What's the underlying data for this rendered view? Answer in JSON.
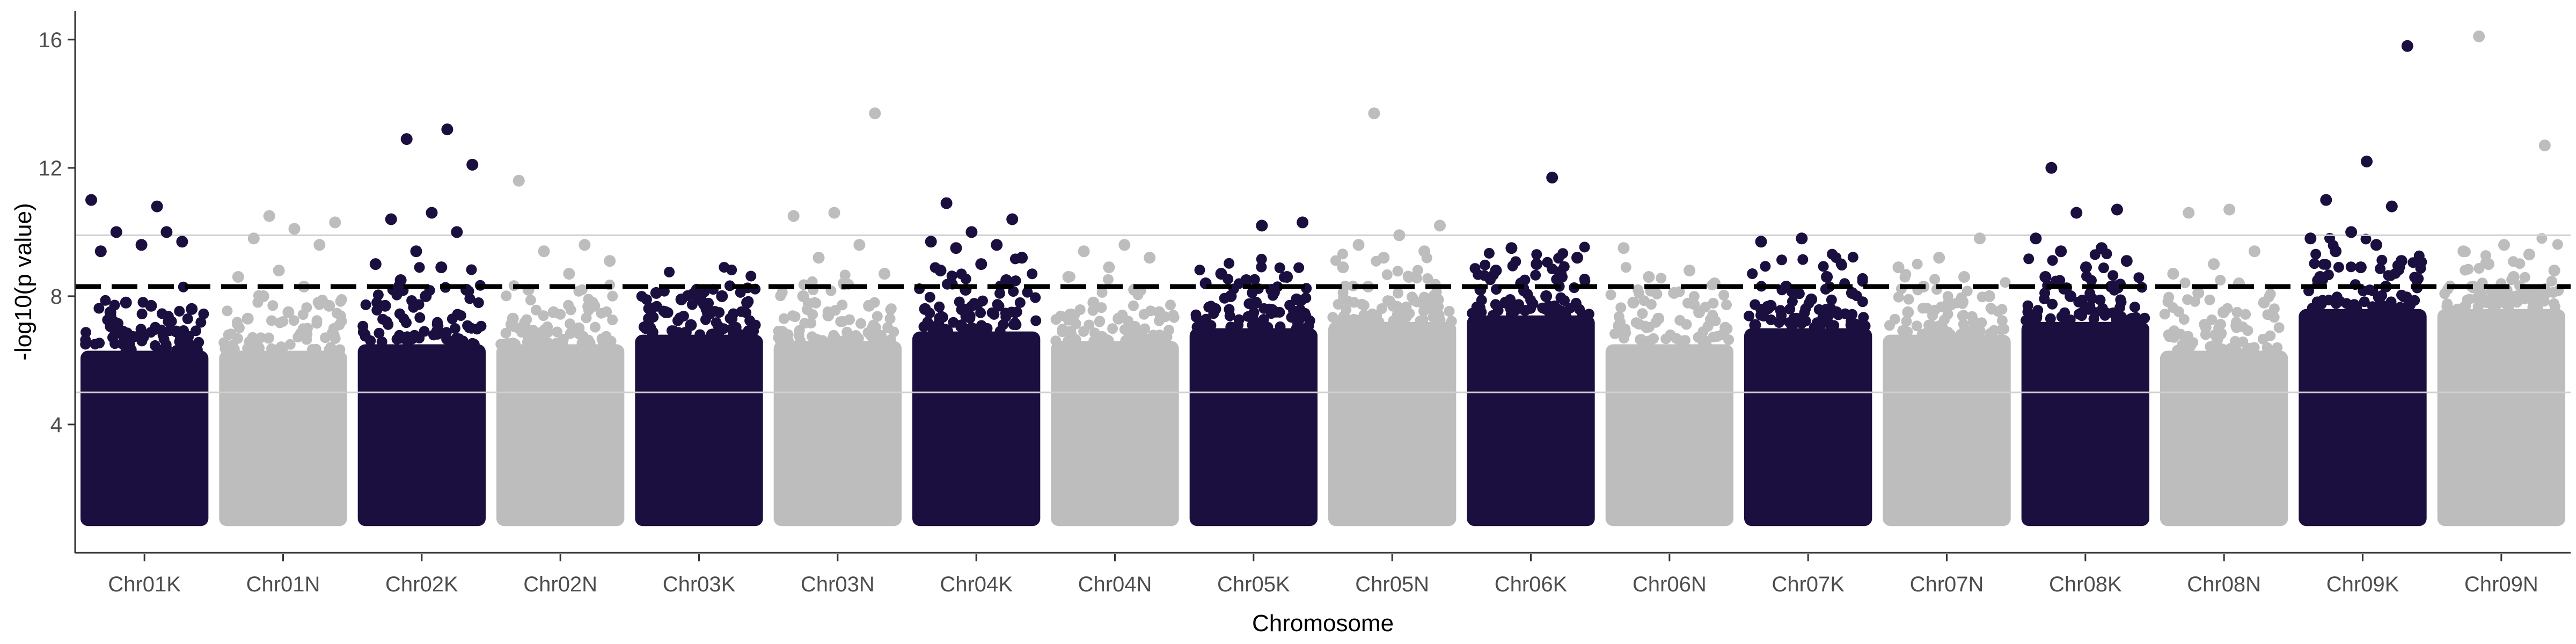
{
  "chart_data": {
    "type": "scatter",
    "subtype": "manhattan",
    "title": "",
    "xlabel": "Chromosome",
    "ylabel": "-log10(p value)",
    "ylim": [
      0,
      16.9
    ],
    "yticks": [
      4,
      8,
      12,
      16
    ],
    "grid": false,
    "legend": "none",
    "baseline_min": 1.0,
    "significance_line": {
      "y": 8.3,
      "style": "dashed",
      "color": "#000000"
    },
    "reference_lines": [
      {
        "y": 9.9,
        "color": "#d0d0d0"
      },
      {
        "y": 5.0,
        "color": "#d0d0d0"
      }
    ],
    "colors": {
      "dark": "#1b0f40",
      "light": "#bdbdbd"
    },
    "chromosomes": [
      {
        "name": "Chr01K",
        "color": "dark",
        "dense_top": 6.3,
        "points": [
          11.0,
          10.8,
          10.0,
          9.7,
          9.6,
          9.4,
          10.0,
          7.8,
          7.6,
          7.7,
          7.5,
          6.9
        ]
      },
      {
        "name": "Chr01N",
        "color": "light",
        "dense_top": 6.3,
        "points": [
          10.5,
          10.3,
          10.1,
          9.8,
          9.6,
          8.8,
          8.6,
          8.3,
          8.0,
          7.7,
          7.5,
          7.3
        ]
      },
      {
        "name": "Chr02K",
        "color": "dark",
        "dense_top": 6.5,
        "points": [
          13.2,
          12.9,
          12.1,
          10.6,
          10.4,
          10.0,
          9.4,
          9.0,
          8.9,
          8.5,
          8.2,
          8.0,
          7.7
        ]
      },
      {
        "name": "Chr02N",
        "color": "light",
        "dense_top": 6.5,
        "points": [
          11.6,
          9.6,
          9.4,
          9.1,
          8.7,
          8.2,
          7.7,
          7.5,
          7.3,
          7.0
        ]
      },
      {
        "name": "Chr03K",
        "color": "dark",
        "dense_top": 6.8,
        "points": [
          8.2,
          8.1,
          8.0,
          7.9,
          7.8,
          7.6,
          7.5,
          7.3,
          7.1,
          7.0
        ]
      },
      {
        "name": "Chr03N",
        "color": "light",
        "dense_top": 6.6,
        "points": [
          13.7,
          10.6,
          10.5,
          9.6,
          9.2,
          8.7,
          8.4,
          8.0,
          7.7,
          7.4
        ]
      },
      {
        "name": "Chr04K",
        "color": "dark",
        "dense_top": 6.9,
        "points": [
          10.9,
          10.4,
          10.0,
          9.7,
          9.6,
          9.5,
          9.2,
          9.0,
          8.8,
          8.5,
          8.2,
          7.6
        ]
      },
      {
        "name": "Chr04N",
        "color": "light",
        "dense_top": 6.6,
        "points": [
          9.6,
          9.4,
          9.2,
          8.9,
          8.6,
          8.2,
          7.8,
          7.5,
          7.3
        ]
      },
      {
        "name": "Chr05K",
        "color": "dark",
        "dense_top": 7.0,
        "points": [
          10.3,
          10.2,
          8.7,
          8.6,
          8.5,
          8.4,
          8.2,
          8.0,
          7.9,
          7.8,
          7.6
        ]
      },
      {
        "name": "Chr05N",
        "color": "light",
        "dense_top": 7.2,
        "points": [
          13.7,
          10.2,
          9.9,
          9.6,
          9.4,
          9.2,
          8.9,
          8.6,
          8.3,
          8.0,
          7.7
        ]
      },
      {
        "name": "Chr06K",
        "color": "dark",
        "dense_top": 7.4,
        "points": [
          11.7,
          9.5,
          9.2,
          9.0,
          8.8,
          8.6,
          8.4,
          8.2,
          8.0,
          7.8
        ]
      },
      {
        "name": "Chr06N",
        "color": "light",
        "dense_top": 6.5,
        "points": [
          9.5,
          8.8,
          8.6,
          8.4,
          8.1,
          7.8,
          7.5,
          7.3
        ]
      },
      {
        "name": "Chr07K",
        "color": "dark",
        "dense_top": 7.0,
        "points": [
          9.8,
          9.7,
          8.6,
          8.3,
          8.1,
          7.9,
          7.7,
          7.5,
          7.3,
          7.1
        ]
      },
      {
        "name": "Chr07N",
        "color": "light",
        "dense_top": 6.8,
        "points": [
          9.8,
          9.2,
          8.9,
          8.6,
          8.3,
          8.0,
          7.8,
          7.5,
          7.2
        ]
      },
      {
        "name": "Chr08K",
        "color": "dark",
        "dense_top": 7.2,
        "points": [
          12.0,
          10.7,
          10.6,
          9.8,
          9.5,
          9.4,
          9.1,
          8.9,
          8.6,
          8.3,
          8.0
        ]
      },
      {
        "name": "Chr08N",
        "color": "light",
        "dense_top": 6.3,
        "points": [
          10.7,
          10.6,
          9.4,
          9.0,
          8.7,
          8.4,
          8.1,
          7.8,
          7.5
        ]
      },
      {
        "name": "Chr09K",
        "color": "dark",
        "dense_top": 7.6,
        "points": [
          15.8,
          12.2,
          11.0,
          10.8,
          10.0,
          9.8,
          9.6,
          9.4,
          9.1,
          8.9,
          8.6,
          8.3
        ]
      },
      {
        "name": "Chr09N",
        "color": "light",
        "dense_top": 7.6,
        "points": [
          16.1,
          12.7,
          9.6,
          9.4,
          9.3,
          9.0,
          8.8,
          8.6,
          8.3,
          8.1
        ]
      }
    ]
  }
}
